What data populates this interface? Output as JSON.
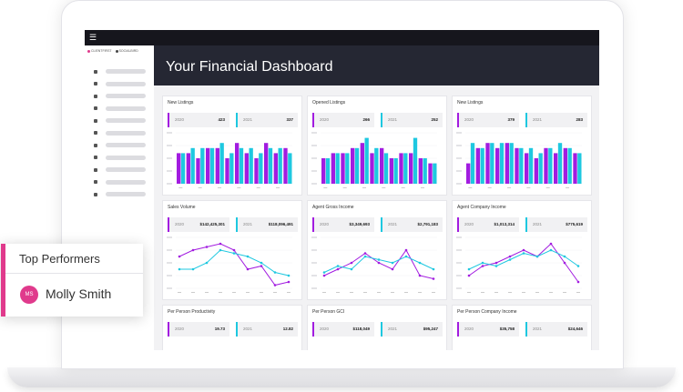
{
  "colors": {
    "purple": "#a21ce0",
    "cyan": "#1ec8e0",
    "pink": "#e03a8c",
    "dark": "#252733"
  },
  "topbar": {
    "menu_icon": "hamburger-icon"
  },
  "sidebar": {
    "tabs": [
      {
        "label": "CLIENTFIRST",
        "color": "#e03a8c"
      },
      {
        "label": "SOCIALBIRD",
        "color": "#444444"
      }
    ],
    "items": [
      {
        "icon": "home-icon"
      },
      {
        "icon": "chat-icon"
      },
      {
        "icon": "folder-icon"
      },
      {
        "icon": "document-icon"
      },
      {
        "icon": "chart-icon"
      },
      {
        "icon": "pin-icon"
      },
      {
        "icon": "calendar-icon"
      },
      {
        "icon": "list-icon"
      },
      {
        "icon": "people-icon"
      },
      {
        "icon": "dollar-icon"
      },
      {
        "icon": "gear-icon"
      }
    ]
  },
  "header": {
    "title": "Your Financial Dashboard"
  },
  "cards": [
    {
      "title": "New Listings",
      "stat2020": "423",
      "stat2021": "337",
      "chart_type": "bar"
    },
    {
      "title": "Opened Listings",
      "stat2020": "266",
      "stat2021": "252",
      "chart_type": "bar"
    },
    {
      "title": "New Listings",
      "stat2020": "379",
      "stat2021": "283",
      "chart_type": "bar"
    },
    {
      "title": "Sales Volume",
      "stat2020": "$142,425,301",
      "stat2021": "$118,096,491",
      "chart_type": "line"
    },
    {
      "title": "Agent Gross Income",
      "stat2020": "$3,349,693",
      "stat2021": "$2,791,183",
      "chart_type": "line"
    },
    {
      "title": "Agent Company Income",
      "stat2020": "$1,013,314",
      "stat2021": "$775,619",
      "chart_type": "line"
    },
    {
      "title": "Per Person Productivity",
      "stat2020": "19.73",
      "stat2021": "12.82",
      "chart_type": "none"
    },
    {
      "title": "Per Person GCI",
      "stat2020": "$118,049",
      "stat2021": "$95,247",
      "chart_type": "none"
    },
    {
      "title": "Per Person Company Income",
      "stat2020": "$35,758",
      "stat2021": "$24,646",
      "chart_type": "none"
    }
  ],
  "year_labels": {
    "y2020": "2020",
    "y2021": "2021"
  },
  "chart_data": [
    {
      "type": "bar",
      "series": [
        {
          "values": [
            6,
            6,
            5,
            7,
            7,
            5,
            8,
            6,
            5,
            8,
            6,
            7
          ]
        },
        {
          "values": [
            6,
            7,
            7,
            7,
            8,
            6,
            7,
            7,
            6,
            7,
            7,
            6
          ]
        }
      ]
    },
    {
      "type": "bar",
      "series": [
        {
          "values": [
            5,
            6,
            6,
            7,
            8,
            6,
            7,
            5,
            6,
            6,
            5,
            4
          ]
        },
        {
          "values": [
            5,
            6,
            6,
            7,
            9,
            7,
            6,
            5,
            6,
            9,
            5,
            4
          ]
        }
      ]
    },
    {
      "type": "bar",
      "series": [
        {
          "values": [
            4,
            7,
            8,
            7,
            8,
            7,
            6,
            5,
            7,
            6,
            7,
            6
          ]
        },
        {
          "values": [
            8,
            7,
            8,
            8,
            8,
            7,
            7,
            6,
            7,
            8,
            7,
            6
          ]
        }
      ]
    },
    {
      "type": "line",
      "series": [
        {
          "values": [
            5,
            6,
            6.5,
            7,
            6,
            3,
            3.5,
            0.5,
            1
          ]
        },
        {
          "values": [
            3,
            3,
            4,
            6,
            5.5,
            5,
            4,
            2.5,
            2
          ]
        }
      ]
    },
    {
      "type": "line",
      "series": [
        {
          "values": [
            2,
            3,
            4,
            5.5,
            4,
            3,
            6,
            2,
            1.5
          ]
        },
        {
          "values": [
            2.5,
            3.5,
            3,
            5,
            4.5,
            4,
            5,
            4,
            3
          ]
        }
      ]
    },
    {
      "type": "line",
      "series": [
        {
          "values": [
            2,
            3.5,
            4,
            5,
            6,
            5,
            7,
            4,
            1
          ]
        },
        {
          "values": [
            3,
            4,
            3.5,
            4.5,
            5.5,
            5,
            6,
            5,
            3.5
          ]
        }
      ]
    }
  ],
  "top_performers": {
    "title": "Top Performers",
    "initials": "MS",
    "name": "Molly Smith"
  }
}
